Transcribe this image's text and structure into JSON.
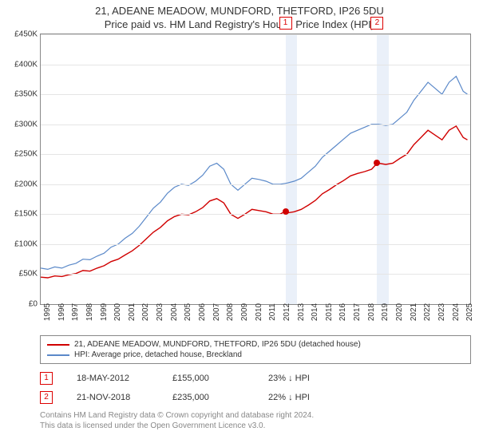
{
  "title1": "21, ADEANE MEADOW, MUNDFORD, THETFORD, IP26 5DU",
  "title2": "Price paid vs. HM Land Registry's House Price Index (HPI)",
  "chart": {
    "type": "line",
    "ylim": [
      0,
      450000
    ],
    "ytick_step": 50000,
    "ylabels": [
      "£0",
      "£50K",
      "£100K",
      "£150K",
      "£200K",
      "£250K",
      "£300K",
      "£350K",
      "£400K",
      "£450K"
    ],
    "xstart": 1995,
    "xend": 2025.5,
    "xlabels": [
      "1995",
      "1996",
      "1997",
      "1998",
      "1999",
      "2000",
      "2001",
      "2002",
      "2003",
      "2004",
      "2005",
      "2006",
      "2007",
      "2008",
      "2009",
      "2010",
      "2011",
      "2012",
      "2013",
      "2014",
      "2015",
      "2016",
      "2017",
      "2018",
      "2019",
      "2020",
      "2021",
      "2022",
      "2023",
      "2024",
      "2025"
    ],
    "background_color": "#ffffff",
    "grid_color": "#e5e5e5",
    "band_color": "#eaf0f9",
    "band_ranges": [
      [
        2012.38,
        2013.2
      ],
      [
        2018.89,
        2019.7
      ]
    ],
    "series": [
      {
        "name": "hpi",
        "color": "#5b89c9",
        "width": 1.2,
        "points": [
          [
            1995.0,
            60000
          ],
          [
            1995.5,
            58000
          ],
          [
            1996.0,
            62000
          ],
          [
            1996.5,
            60000
          ],
          [
            1997.0,
            65000
          ],
          [
            1997.5,
            68000
          ],
          [
            1998.0,
            75000
          ],
          [
            1998.5,
            74000
          ],
          [
            1999.0,
            80000
          ],
          [
            1999.5,
            85000
          ],
          [
            2000.0,
            95000
          ],
          [
            2000.5,
            100000
          ],
          [
            2001.0,
            110000
          ],
          [
            2001.5,
            118000
          ],
          [
            2002.0,
            130000
          ],
          [
            2002.5,
            145000
          ],
          [
            2003.0,
            160000
          ],
          [
            2003.5,
            170000
          ],
          [
            2004.0,
            185000
          ],
          [
            2004.5,
            195000
          ],
          [
            2005.0,
            200000
          ],
          [
            2005.5,
            198000
          ],
          [
            2006.0,
            205000
          ],
          [
            2006.5,
            215000
          ],
          [
            2007.0,
            230000
          ],
          [
            2007.5,
            235000
          ],
          [
            2008.0,
            225000
          ],
          [
            2008.5,
            200000
          ],
          [
            2009.0,
            190000
          ],
          [
            2009.5,
            200000
          ],
          [
            2010.0,
            210000
          ],
          [
            2010.5,
            208000
          ],
          [
            2011.0,
            205000
          ],
          [
            2011.5,
            200000
          ],
          [
            2012.0,
            200000
          ],
          [
            2012.5,
            202000
          ],
          [
            2013.0,
            205000
          ],
          [
            2013.5,
            210000
          ],
          [
            2014.0,
            220000
          ],
          [
            2014.5,
            230000
          ],
          [
            2015.0,
            245000
          ],
          [
            2015.5,
            255000
          ],
          [
            2016.0,
            265000
          ],
          [
            2016.5,
            275000
          ],
          [
            2017.0,
            285000
          ],
          [
            2017.5,
            290000
          ],
          [
            2018.0,
            295000
          ],
          [
            2018.5,
            300000
          ],
          [
            2019.0,
            300000
          ],
          [
            2019.5,
            298000
          ],
          [
            2020.0,
            300000
          ],
          [
            2020.5,
            310000
          ],
          [
            2021.0,
            320000
          ],
          [
            2021.5,
            340000
          ],
          [
            2022.0,
            355000
          ],
          [
            2022.5,
            370000
          ],
          [
            2023.0,
            360000
          ],
          [
            2023.5,
            350000
          ],
          [
            2024.0,
            370000
          ],
          [
            2024.5,
            380000
          ],
          [
            2025.0,
            355000
          ],
          [
            2025.3,
            350000
          ]
        ]
      },
      {
        "name": "property",
        "color": "#d00000",
        "width": 1.4,
        "points": [
          [
            1995.0,
            45000
          ],
          [
            1995.5,
            44000
          ],
          [
            1996.0,
            47000
          ],
          [
            1996.5,
            46000
          ],
          [
            1997.0,
            49000
          ],
          [
            1997.5,
            51000
          ],
          [
            1998.0,
            56000
          ],
          [
            1998.5,
            55000
          ],
          [
            1999.0,
            60000
          ],
          [
            1999.5,
            64000
          ],
          [
            2000.0,
            71000
          ],
          [
            2000.5,
            75000
          ],
          [
            2001.0,
            82000
          ],
          [
            2001.5,
            89000
          ],
          [
            2002.0,
            98000
          ],
          [
            2002.5,
            109000
          ],
          [
            2003.0,
            120000
          ],
          [
            2003.5,
            128000
          ],
          [
            2004.0,
            139000
          ],
          [
            2004.5,
            146000
          ],
          [
            2005.0,
            150000
          ],
          [
            2005.5,
            149000
          ],
          [
            2006.0,
            154000
          ],
          [
            2006.5,
            161000
          ],
          [
            2007.0,
            172000
          ],
          [
            2007.5,
            176000
          ],
          [
            2008.0,
            169000
          ],
          [
            2008.5,
            150000
          ],
          [
            2009.0,
            143000
          ],
          [
            2009.5,
            150000
          ],
          [
            2010.0,
            158000
          ],
          [
            2010.5,
            156000
          ],
          [
            2011.0,
            154000
          ],
          [
            2011.5,
            150000
          ],
          [
            2012.0,
            150000
          ],
          [
            2012.38,
            155000
          ],
          [
            2012.5,
            152000
          ],
          [
            2013.0,
            154000
          ],
          [
            2013.5,
            158000
          ],
          [
            2014.0,
            165000
          ],
          [
            2014.5,
            173000
          ],
          [
            2015.0,
            184000
          ],
          [
            2015.5,
            191000
          ],
          [
            2016.0,
            199000
          ],
          [
            2016.5,
            206000
          ],
          [
            2017.0,
            214000
          ],
          [
            2017.5,
            218000
          ],
          [
            2018.0,
            221000
          ],
          [
            2018.5,
            225000
          ],
          [
            2018.89,
            235000
          ],
          [
            2019.0,
            235000
          ],
          [
            2019.5,
            233000
          ],
          [
            2020.0,
            235000
          ],
          [
            2020.5,
            243000
          ],
          [
            2021.0,
            250000
          ],
          [
            2021.5,
            266000
          ],
          [
            2022.0,
            278000
          ],
          [
            2022.5,
            290000
          ],
          [
            2023.0,
            282000
          ],
          [
            2023.5,
            274000
          ],
          [
            2024.0,
            290000
          ],
          [
            2024.5,
            297000
          ],
          [
            2025.0,
            278000
          ],
          [
            2025.3,
            274000
          ]
        ]
      }
    ],
    "sale_markers": [
      {
        "num": "1",
        "x": 2012.38,
        "y": 155000
      },
      {
        "num": "2",
        "x": 2018.89,
        "y": 235000
      }
    ]
  },
  "legend": [
    {
      "color": "#d00000",
      "label": "21, ADEANE MEADOW, MUNDFORD, THETFORD, IP26 5DU (detached house)"
    },
    {
      "color": "#5b89c9",
      "label": "HPI: Average price, detached house, Breckland"
    }
  ],
  "sales": [
    {
      "num": "1",
      "date": "18-MAY-2012",
      "price": "£155,000",
      "delta": "23% ↓ HPI"
    },
    {
      "num": "2",
      "date": "21-NOV-2018",
      "price": "£235,000",
      "delta": "22% ↓ HPI"
    }
  ],
  "footer1": "Contains HM Land Registry data © Crown copyright and database right 2024.",
  "footer2": "This data is licensed under the Open Government Licence v3.0."
}
